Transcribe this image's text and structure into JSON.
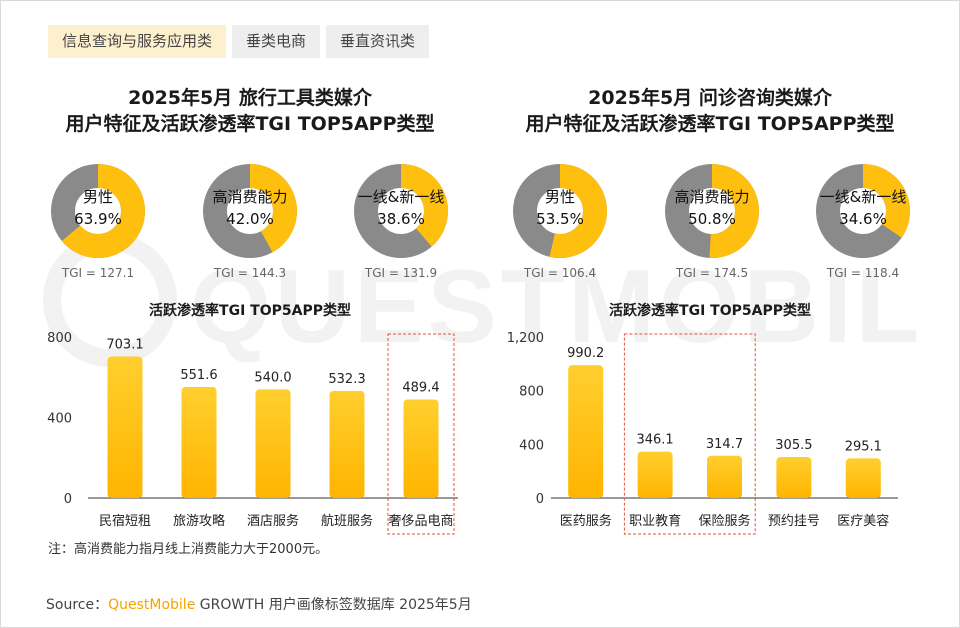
{
  "tabs": [
    "信息查询与服务应用类",
    "垂类电商",
    "垂直资讯类"
  ],
  "watermark": "QUESTMOBILE",
  "colors": {
    "accent": "#ffbf0f",
    "gray": "#8a8a8a",
    "highlight_box": "#e8503a",
    "brand": "#f5a300"
  },
  "chart_data": [
    {
      "title_line1": "2025年5月 旅行工具类媒介",
      "title_line2": "用户特征及活跃渗透率TGI TOP5APP类型",
      "donuts": [
        {
          "label": "男性",
          "value": "63.9%",
          "percent": 63.9,
          "tgi": "TGI = 127.1"
        },
        {
          "label": "高消费能力",
          "value": "42.0%",
          "percent": 42.0,
          "tgi": "TGI = 144.3"
        },
        {
          "label": "一线&新一线",
          "value": "38.6%",
          "percent": 38.6,
          "tgi": "TGI = 131.9"
        }
      ],
      "type": "bar",
      "subtitle": "活跃渗透率TGI TOP5APP类型",
      "categories": [
        "民宿短租",
        "旅游攻略",
        "酒店服务",
        "航班服务",
        "奢侈品电商"
      ],
      "values": [
        703.1,
        551.6,
        540.0,
        532.3,
        489.4
      ],
      "value_labels": [
        "703.1",
        "551.6",
        "540.0",
        "532.3",
        "489.4"
      ],
      "yticks": [
        "0",
        "400",
        "800"
      ],
      "ylim": [
        0,
        800
      ],
      "highlight": [
        4
      ]
    },
    {
      "title_line1": "2025年5月 问诊咨询类媒介",
      "title_line2": "用户特征及活跃渗透率TGI TOP5APP类型",
      "donuts": [
        {
          "label": "男性",
          "value": "53.5%",
          "percent": 53.5,
          "tgi": "TGI = 106.4"
        },
        {
          "label": "高消费能力",
          "value": "50.8%",
          "percent": 50.8,
          "tgi": "TGI = 174.5"
        },
        {
          "label": "一线&新一线",
          "value": "34.6%",
          "percent": 34.6,
          "tgi": "TGI = 118.4"
        }
      ],
      "type": "bar",
      "subtitle": "活跃渗透率TGI TOP5APP类型",
      "categories": [
        "医药服务",
        "职业教育",
        "保险服务",
        "预约挂号",
        "医疗美容"
      ],
      "values": [
        990.2,
        346.1,
        314.7,
        305.5,
        295.1
      ],
      "value_labels": [
        "990.2",
        "346.1",
        "314.7",
        "305.5",
        "295.1"
      ],
      "yticks": [
        "0",
        "400",
        "800",
        "1,200"
      ],
      "ylim": [
        0,
        1200
      ],
      "highlight": [
        1,
        2
      ]
    }
  ],
  "note": "注：高消费能力指月线上消费能力大于2000元。",
  "source": {
    "prefix": "Source：",
    "brand": "QuestMobile",
    "suffix": " GROWTH 用户画像标签数据库 2025年5月"
  }
}
